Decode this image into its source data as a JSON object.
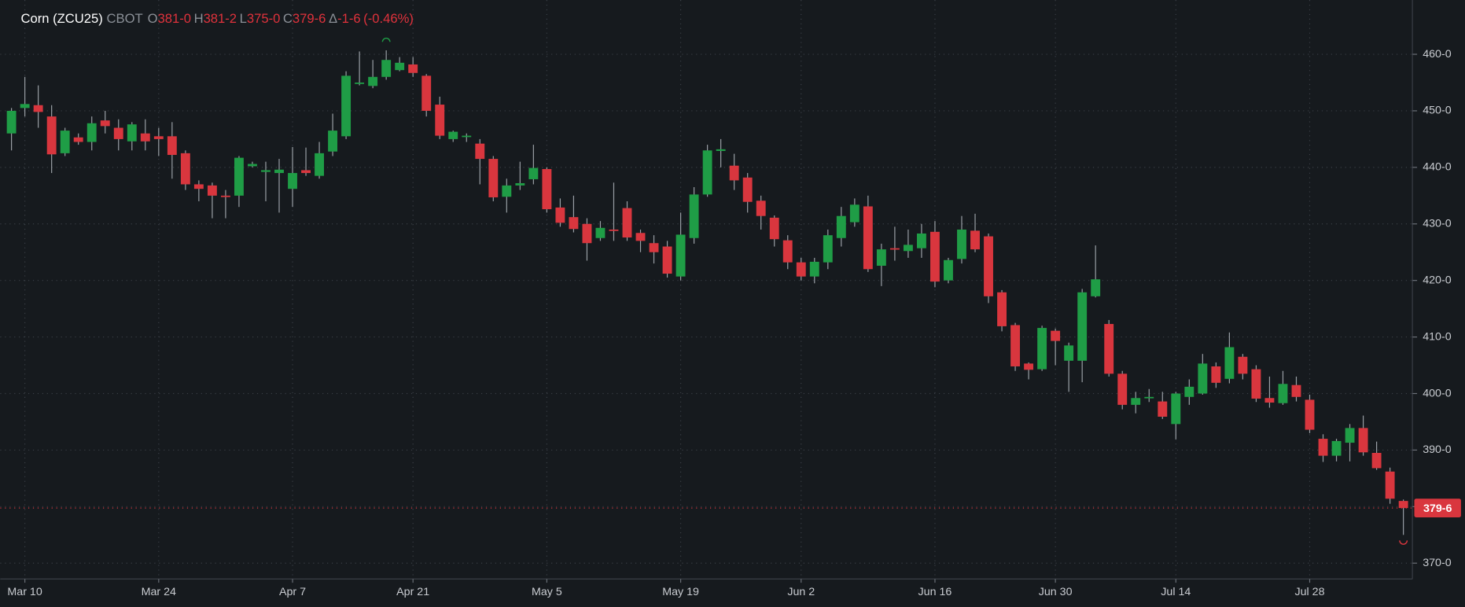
{
  "chart_data": {
    "type": "candlestick",
    "header": {
      "symbol": "Corn (ZCU25)",
      "exchange": "CBOT",
      "open_label": "O",
      "open": "381-0",
      "high_label": "H",
      "high": "381-2",
      "low_label": "L",
      "low": "375-0",
      "close_label": "C",
      "close": "379-6",
      "change_label": "Δ",
      "change": "-1-6",
      "change_pct": "(-0.46%)"
    },
    "categories": [
      null,
      "Mar 10",
      null,
      null,
      null,
      null,
      null,
      null,
      null,
      null,
      null,
      "Mar 24",
      null,
      null,
      null,
      null,
      null,
      null,
      null,
      null,
      null,
      "Apr 7",
      null,
      null,
      null,
      null,
      null,
      null,
      null,
      null,
      "Apr 21",
      null,
      null,
      null,
      null,
      null,
      null,
      null,
      null,
      null,
      "May 5",
      null,
      null,
      null,
      null,
      null,
      null,
      null,
      null,
      null,
      "May 19",
      null,
      null,
      null,
      null,
      null,
      null,
      null,
      null,
      "Jun 2",
      null,
      null,
      null,
      null,
      null,
      null,
      null,
      null,
      null,
      "Jun 16",
      null,
      null,
      null,
      null,
      null,
      null,
      null,
      null,
      "Jun 30",
      null,
      null,
      null,
      null,
      null,
      null,
      null,
      null,
      "Jul 14",
      null,
      null,
      null,
      null,
      null,
      null,
      null,
      null,
      null,
      "Jul 28",
      null,
      null,
      null,
      null,
      null,
      null,
      null
    ],
    "open": [
      446,
      450.5,
      451,
      449,
      442.5,
      445.3,
      444.5,
      448.3,
      447,
      444.6,
      446,
      445.5,
      445.5,
      442.5,
      437,
      436.8,
      435,
      435,
      440.2,
      439.2,
      439,
      436.2,
      439.5,
      438.5,
      442.8,
      445.5,
      454.8,
      454.4,
      456,
      457.2,
      458.2,
      456.2,
      451.1,
      445,
      445.4,
      444.2,
      441.5,
      434.8,
      436.8,
      437.9,
      439.7,
      432.9,
      431.2,
      430,
      427.5,
      429,
      432.8,
      428.4,
      426.6,
      426,
      420.7,
      427.5,
      435.2,
      442.9,
      440.3,
      438.2,
      434.1,
      431.1,
      427.1,
      423.2,
      420.7,
      423.2,
      427.5,
      430.3,
      433.1,
      422.6,
      425.7,
      425.2,
      425.7,
      428.6,
      420,
      423.8,
      428.8,
      427.8,
      417.9,
      412.1,
      405.3,
      404.3,
      411.1,
      405.8,
      405.8,
      417.2,
      412.3,
      403.5,
      398,
      399.2,
      398.6,
      394.6,
      399.4,
      400,
      404.8,
      402.6,
      406.5,
      404.3,
      399.2,
      398.3,
      401.5,
      398.9,
      392,
      389,
      391.3,
      393.9,
      389.5,
      386.2,
      381
    ],
    "high": [
      450.5,
      456,
      454.5,
      451,
      447,
      446,
      449,
      450,
      448.5,
      448,
      448.5,
      447,
      448,
      443,
      437.7,
      437.3,
      436,
      442,
      441,
      441,
      441.5,
      443.6,
      443.5,
      444.5,
      449.5,
      457,
      460.5,
      459,
      460.7,
      459.5,
      459.5,
      456.5,
      452.5,
      446.5,
      446,
      445,
      442,
      438,
      441,
      444,
      440,
      434.5,
      435,
      431,
      430.5,
      437.3,
      434,
      429,
      428,
      427,
      432,
      436.5,
      444,
      445,
      442.4,
      439,
      435,
      431.5,
      428,
      424,
      424,
      429,
      433,
      434.5,
      435,
      426.5,
      429.5,
      429,
      430,
      430.5,
      424,
      431.4,
      431.8,
      428.3,
      418.3,
      412.5,
      405.5,
      412,
      411.5,
      409,
      418.5,
      426.2,
      413,
      404,
      400.3,
      400.8,
      400.3,
      400.3,
      402.5,
      407,
      405.5,
      410.8,
      407,
      405,
      403,
      404,
      403,
      399.8,
      392.8,
      392,
      394.6,
      396.1,
      391.5,
      386.9,
      381.25
    ],
    "low": [
      443,
      449,
      447,
      439,
      442,
      444,
      443,
      446,
      443,
      443,
      443,
      442,
      438,
      436,
      434,
      431,
      431,
      433,
      440,
      434,
      432,
      433,
      438.5,
      438,
      442,
      445,
      454.5,
      454,
      455.5,
      457,
      456,
      449,
      445,
      444.5,
      444.5,
      437,
      434,
      432,
      436,
      437,
      432,
      429.5,
      428.5,
      423.5,
      427,
      427,
      427,
      425,
      423,
      420.5,
      420,
      426.5,
      434.8,
      440,
      436,
      432,
      429,
      426,
      422,
      420,
      419.5,
      422,
      426,
      429.5,
      421.5,
      419,
      423.5,
      424,
      424,
      418.8,
      419.5,
      423,
      425,
      416,
      411,
      404,
      402.5,
      404,
      405,
      400.3,
      402,
      417,
      403,
      397.2,
      396.5,
      398.5,
      395.5,
      391.9,
      398,
      399.8,
      401,
      401.8,
      402.5,
      398.5,
      397.5,
      398,
      398.6,
      393,
      387.9,
      388,
      388,
      389,
      386.5,
      380.5,
      375
    ],
    "close": [
      450,
      451.2,
      449.8,
      442.3,
      446.5,
      444.5,
      447.8,
      447.3,
      445,
      447.6,
      444.6,
      445,
      442.2,
      437,
      436.2,
      435,
      434.8,
      441.7,
      440.6,
      439.5,
      439.6,
      439,
      439,
      442.5,
      446.5,
      456.2,
      455,
      456,
      459,
      458.5,
      456.7,
      450,
      445.6,
      446.3,
      445.6,
      441.5,
      434.7,
      436.8,
      437.2,
      439.9,
      432.6,
      430.2,
      429.1,
      426.6,
      429.3,
      428.8,
      427.6,
      427,
      425,
      421.2,
      428.1,
      435.2,
      443,
      443.2,
      437.7,
      433.9,
      431.4,
      427.3,
      423.2,
      420.7,
      423.3,
      428,
      431.4,
      433.4,
      422,
      425.5,
      425.5,
      426.3,
      428.3,
      419.8,
      423.6,
      429,
      425.5,
      417.2,
      411.9,
      404.8,
      404.2,
      411.6,
      409.3,
      408.5,
      417.9,
      420.2,
      403.5,
      398,
      399.2,
      399.4,
      395.9,
      400,
      401.2,
      405.3,
      401.9,
      408.2,
      403.5,
      399.1,
      398.4,
      401.7,
      399.4,
      393.6,
      389,
      391.6,
      393.9,
      389.6,
      386.8,
      381.4,
      379.75
    ],
    "up_color": "#1f9d46",
    "down_color": "#d9363e",
    "ylim": [
      367.2,
      469.6
    ],
    "yticks": [
      {
        "value": 370,
        "label": "370-0"
      },
      {
        "value": 380,
        "label": "380-0"
      },
      {
        "value": 390,
        "label": "390-0"
      },
      {
        "value": 400,
        "label": "400-0"
      },
      {
        "value": 410,
        "label": "410-0"
      },
      {
        "value": 420,
        "label": "420-0"
      },
      {
        "value": 430,
        "label": "430-0"
      },
      {
        "value": 440,
        "label": "440-0"
      },
      {
        "value": 450,
        "label": "450-0"
      },
      {
        "value": 460,
        "label": "460-0"
      }
    ],
    "last_price": {
      "value": 379.75,
      "label": "379-6"
    },
    "grid": true
  }
}
